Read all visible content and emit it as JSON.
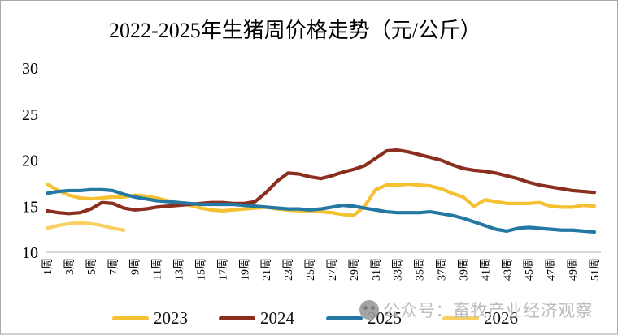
{
  "title": "2022-2025年生猪周价格走势（元/公斤）",
  "watermark": {
    "text": "公众号：畜牧产业经济观察",
    "icon": "wechat-account-logo"
  },
  "chart_data": {
    "type": "line",
    "title": "2022-2025年生猪周价格走势（元/公斤）",
    "xlabel": "",
    "ylabel": "",
    "unit": "元/公斤",
    "ylim": [
      10,
      30
    ],
    "yticks": [
      10,
      15,
      20,
      25,
      30
    ],
    "x_range": [
      1,
      51
    ],
    "x_tick_step": 2,
    "xtick_labels": [
      "1周",
      "3周",
      "5周",
      "7周",
      "9周",
      "11周",
      "13周",
      "15周",
      "17周",
      "19周",
      "21周",
      "23周",
      "25周",
      "27周",
      "29周",
      "31周",
      "33周",
      "35周",
      "37周",
      "39周",
      "41周",
      "43周",
      "45周",
      "47周",
      "49周",
      "51周"
    ],
    "grid": false,
    "legend_position": "bottom",
    "axis_color": "#d9d9d9",
    "series": [
      {
        "name": "2023",
        "color": "#f5c032",
        "values": [
          17.4,
          16.7,
          16.2,
          15.9,
          15.8,
          15.9,
          16.0,
          16.0,
          16.2,
          16.1,
          15.9,
          15.6,
          15.4,
          15.1,
          14.8,
          14.6,
          14.5,
          14.6,
          14.7,
          14.8,
          14.9,
          14.7,
          14.6,
          14.5,
          14.5,
          14.4,
          14.3,
          14.1,
          14.0,
          15.0,
          16.8,
          17.3,
          17.3,
          17.4,
          17.3,
          17.2,
          16.9,
          16.4,
          16.0,
          15.0,
          15.7,
          15.5,
          15.3,
          15.3,
          15.3,
          15.4,
          15.0,
          14.9,
          14.9,
          15.1,
          15.0
        ]
      },
      {
        "name": "2024",
        "color": "#8b2e1d",
        "values": [
          14.5,
          14.3,
          14.2,
          14.3,
          14.7,
          15.4,
          15.3,
          14.8,
          14.6,
          14.7,
          14.9,
          15.0,
          15.1,
          15.2,
          15.3,
          15.4,
          15.4,
          15.3,
          15.3,
          15.5,
          16.5,
          17.7,
          18.6,
          18.5,
          18.2,
          18.0,
          18.3,
          18.7,
          19.0,
          19.4,
          20.2,
          21.0,
          21.1,
          20.9,
          20.6,
          20.3,
          20.0,
          19.5,
          19.1,
          18.9,
          18.8,
          18.6,
          18.3,
          18.0,
          17.6,
          17.3,
          17.1,
          16.9,
          16.7,
          16.6,
          16.5
        ]
      },
      {
        "name": "2025",
        "color": "#2478a4",
        "values": [
          16.4,
          16.6,
          16.7,
          16.7,
          16.8,
          16.8,
          16.7,
          16.3,
          16.0,
          15.8,
          15.6,
          15.5,
          15.4,
          15.3,
          15.2,
          15.2,
          15.2,
          15.2,
          15.1,
          15.0,
          14.9,
          14.8,
          14.7,
          14.7,
          14.6,
          14.7,
          14.9,
          15.1,
          15.0,
          14.8,
          14.6,
          14.4,
          14.3,
          14.3,
          14.3,
          14.4,
          14.2,
          14.0,
          13.7,
          13.3,
          12.9,
          12.5,
          12.3,
          12.6,
          12.7,
          12.6,
          12.5,
          12.4,
          12.4,
          12.3,
          12.2
        ]
      },
      {
        "name": "2026",
        "color": "#f9d05f",
        "values": [
          12.6,
          12.9,
          13.1,
          13.2,
          13.1,
          12.9,
          12.6,
          12.4,
          null,
          null,
          null,
          null,
          null,
          null,
          null,
          null,
          null,
          null,
          null,
          null,
          null,
          null,
          null,
          null,
          null,
          null,
          null,
          null,
          null,
          null,
          null,
          null,
          null,
          null,
          null,
          null,
          null,
          null,
          null,
          null,
          null,
          null,
          null,
          null,
          null,
          null,
          null,
          null,
          null,
          null,
          null
        ]
      }
    ]
  }
}
